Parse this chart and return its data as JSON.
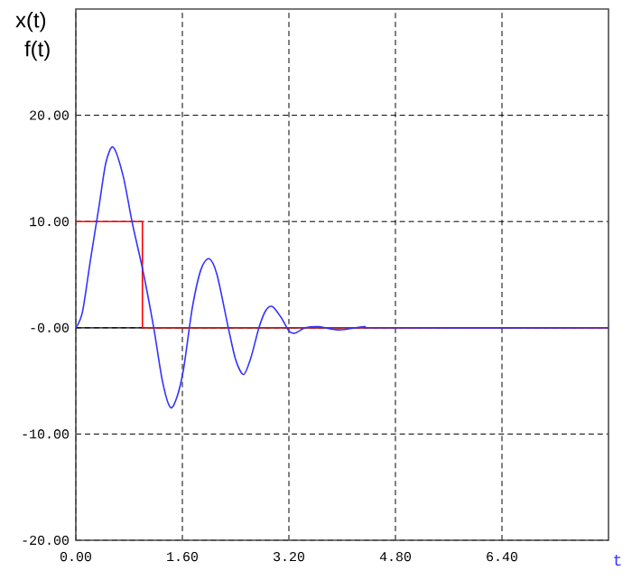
{
  "chart_data": {
    "type": "line",
    "xlabel": "t",
    "ylabel": "x(t)",
    "annotations": [
      "f(t)"
    ],
    "xlim": [
      0,
      8
    ],
    "ylim": [
      -20,
      30
    ],
    "xticks": [
      {
        "value": 0,
        "label": "0.00"
      },
      {
        "value": 1.6,
        "label": "1.60"
      },
      {
        "value": 3.2,
        "label": "3.20"
      },
      {
        "value": 4.8,
        "label": "4.80"
      },
      {
        "value": 6.4,
        "label": "6.40"
      }
    ],
    "yticks": [
      {
        "value": -20,
        "label": "-20.00"
      },
      {
        "value": -10,
        "label": "-10.00"
      },
      {
        "value": 0,
        "label": "-0.00"
      },
      {
        "value": 10,
        "label": "10.00"
      },
      {
        "value": 20,
        "label": "20.00"
      }
    ],
    "grid": true,
    "ref_lines": [
      {
        "axis": "y",
        "value": 0,
        "color": "#000000"
      }
    ],
    "series": [
      {
        "type": "step",
        "color": "#ff0000",
        "x": [
          0,
          1.0,
          8
        ],
        "values": [
          10,
          0,
          0
        ]
      },
      {
        "color": "#3333ff",
        "x": [
          0,
          0.1,
          0.22,
          0.35,
          0.45,
          0.56,
          0.71,
          0.85,
          1.01,
          1.17,
          1.3,
          1.42,
          1.52,
          1.62,
          1.75,
          1.88,
          2.0,
          2.12,
          2.29,
          2.4,
          2.52,
          2.63,
          2.75,
          2.85,
          2.95,
          3.08,
          3.2,
          3.29,
          3.45,
          3.65,
          3.96,
          4.33,
          4.6,
          8
        ],
        "values": [
          0,
          1.5,
          6.4,
          11.5,
          15.5,
          17.0,
          14.3,
          9.8,
          5.3,
          0,
          -5.0,
          -7.5,
          -6.5,
          -3.8,
          1.9,
          5.5,
          6.5,
          5.0,
          0,
          -3.0,
          -4.4,
          -2.8,
          0,
          1.6,
          2.0,
          1.0,
          -0.3,
          -0.5,
          0,
          0.1,
          -0.2,
          0.1,
          0,
          0
        ]
      }
    ]
  }
}
